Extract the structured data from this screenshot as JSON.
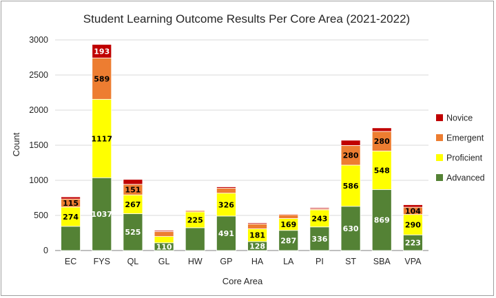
{
  "chart_data": {
    "type": "bar",
    "stacked": true,
    "title": "Student Learning Outcome Results Per Core Area (2021-2022)",
    "xlabel": "Core Area",
    "ylabel": "Count",
    "ylim": [
      0,
      3000
    ],
    "yticks": [
      0,
      500,
      1000,
      1500,
      2000,
      2500,
      3000
    ],
    "grid": true,
    "legend_position": "right",
    "categories": [
      "EC",
      "FYS",
      "QL",
      "GL",
      "HW",
      "GP",
      "HA",
      "LA",
      "PI",
      "ST",
      "SBA",
      "VPA"
    ],
    "series": [
      {
        "name": "Advanced",
        "color": "#548235",
        "values": [
          345,
          1037,
          525,
          110,
          325,
          491,
          128,
          287,
          336,
          630,
          869,
          223
        ],
        "labels": [
          "",
          "1037",
          "525",
          "110",
          "",
          "491",
          "128",
          "287",
          "336",
          "630",
          "869",
          "223"
        ],
        "label_color": "#ffffff"
      },
      {
        "name": "Proficient",
        "color": "#ffff00",
        "values": [
          274,
          1117,
          267,
          90,
          225,
          326,
          181,
          169,
          243,
          586,
          548,
          290
        ],
        "labels": [
          "274",
          "1117",
          "267",
          "",
          "225",
          "326",
          "181",
          "169",
          "243",
          "586",
          "548",
          "290"
        ],
        "label_color": "#000000"
      },
      {
        "name": "Emergent",
        "color": "#ed7d31",
        "values": [
          115,
          589,
          151,
          70,
          20,
          70,
          70,
          55,
          15,
          280,
          280,
          104
        ],
        "labels": [
          "115",
          "589",
          "151",
          "",
          "",
          "",
          "",
          "",
          "",
          "280",
          "280",
          "104"
        ],
        "label_color": "#000000"
      },
      {
        "name": "Novice",
        "color": "#c00000",
        "values": [
          30,
          193,
          70,
          15,
          5,
          20,
          15,
          10,
          15,
          75,
          50,
          35
        ],
        "labels": [
          "",
          "193",
          "",
          "",
          "",
          "",
          "",
          "",
          "",
          "",
          "",
          ""
        ],
        "label_color": "#ffffff"
      }
    ],
    "legend_order": [
      "Novice",
      "Emergent",
      "Proficient",
      "Advanced"
    ]
  }
}
